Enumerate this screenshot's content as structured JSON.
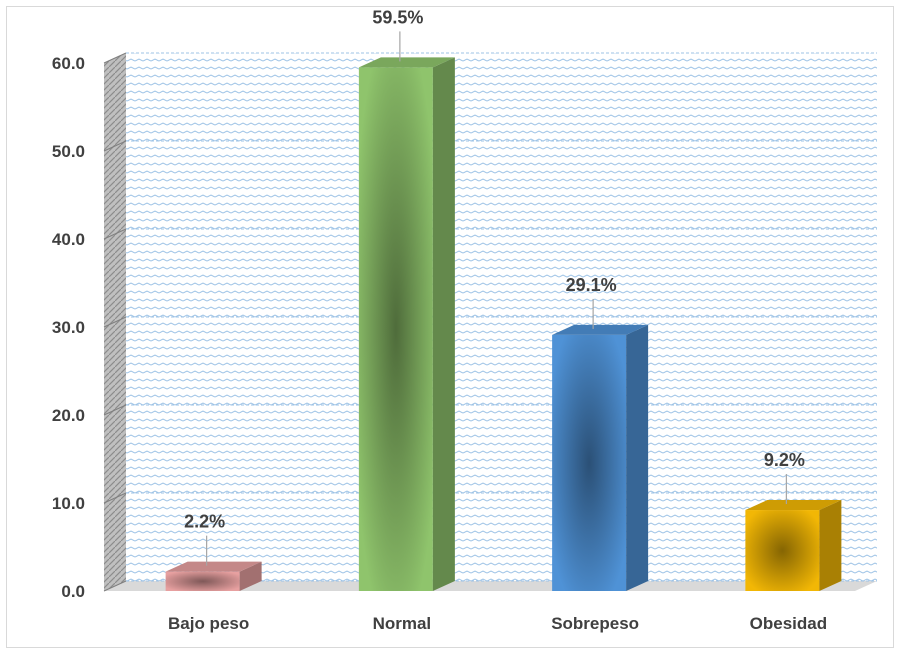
{
  "chart_data": {
    "type": "bar",
    "categories": [
      "Bajo peso",
      "Normal",
      "Sobrepeso",
      "Obesidad"
    ],
    "values": [
      2.2,
      59.5,
      29.1,
      9.2
    ],
    "data_labels": [
      "2.2%",
      "59.5%",
      "29.1%",
      "9.2%"
    ],
    "ylim": [
      0,
      60
    ],
    "yticks": [
      0,
      10,
      20,
      30,
      40,
      50,
      60
    ],
    "ytick_labels": [
      "0.0",
      "10.0",
      "20.0",
      "30.0",
      "40.0",
      "50.0",
      "60.0"
    ],
    "grid": true,
    "style": "3d-column",
    "colors": {
      "Bajo peso": "#e7a0a0",
      "Normal": "#8fc46c",
      "Sobrepeso": "#4f92d6",
      "Obesidad": "#f2b705"
    }
  }
}
